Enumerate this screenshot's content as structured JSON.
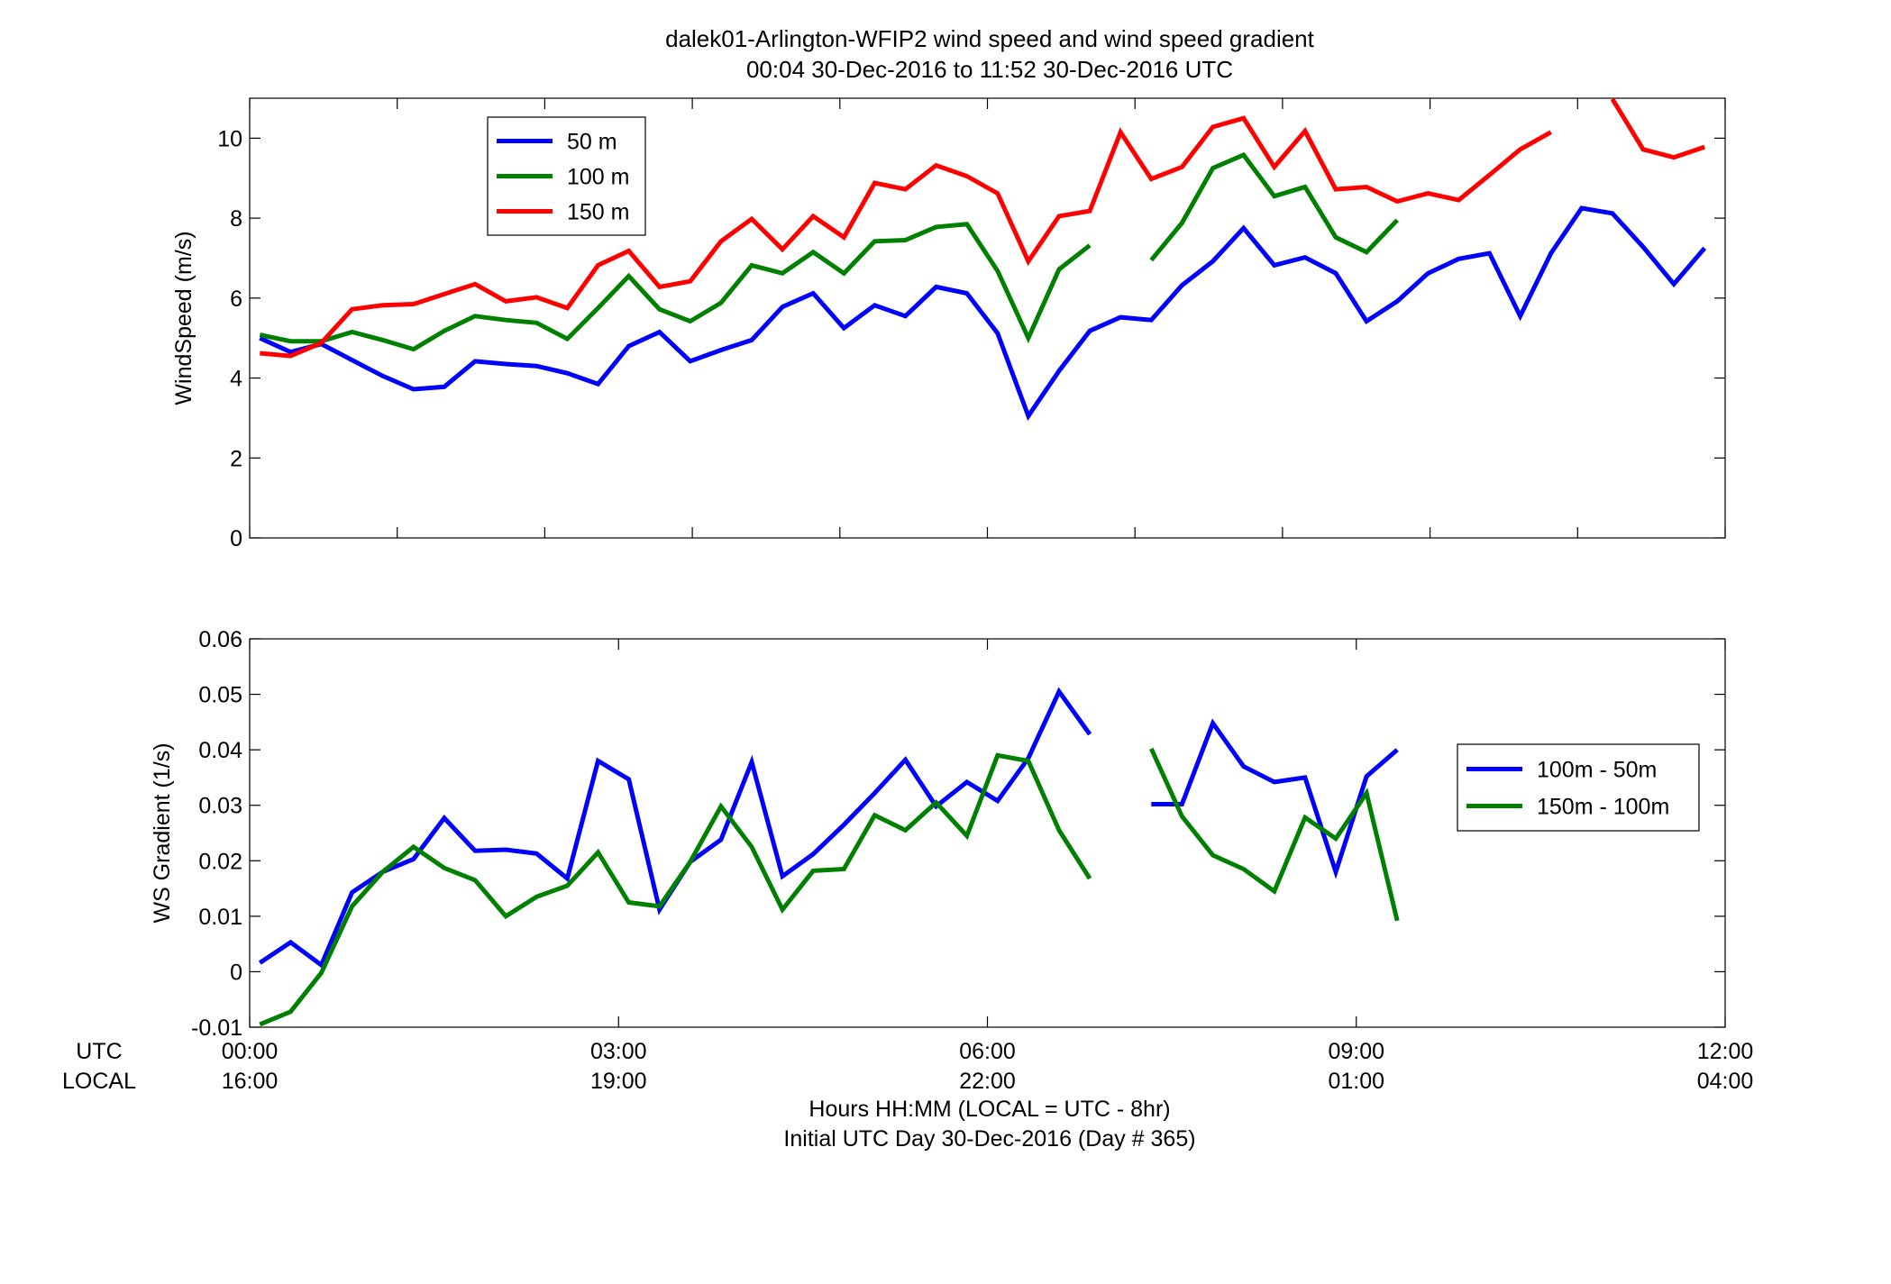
{
  "figure": {
    "title_line1": "dalek01-Arlington-WFIP2  wind speed and wind speed gradient",
    "title_line2": "00:04 30-Dec-2016 to 11:52 30-Dec-2016  UTC",
    "row_label_utc": "UTC",
    "row_label_local": "LOCAL",
    "xlabel_line1": "Hours HH:MM  (LOCAL = UTC - 8hr)",
    "xlabel_line2": "Initial UTC Day 30-Dec-2016 (Day # 365)"
  },
  "chart_data": [
    {
      "type": "line",
      "ylabel": "WindSpeed (m/s)",
      "xlim": [
        0,
        12
      ],
      "ylim": [
        0,
        11
      ],
      "yticks": [
        0,
        2,
        4,
        6,
        8,
        10
      ],
      "xticks": [
        0,
        1.2,
        2.4,
        3.6,
        4.8,
        6,
        7.2,
        8.4,
        9.6,
        10.8,
        12
      ],
      "legend_position": "top-left",
      "series": [
        {
          "name": "50 m",
          "color": "#0000ff",
          "x": [
            0.083,
            0.333,
            0.583,
            0.833,
            1.083,
            1.333,
            1.583,
            1.833,
            2.083,
            2.333,
            2.583,
            2.833,
            3.083,
            3.333,
            3.583,
            3.833,
            4.083,
            4.333,
            4.583,
            4.833,
            5.083,
            5.333,
            5.583,
            5.833,
            6.083,
            6.333,
            6.583,
            6.833,
            7.083,
            7.333,
            7.583,
            7.833,
            8.083,
            8.333,
            8.583,
            8.833,
            9.083,
            9.333,
            9.583,
            9.833,
            10.083,
            10.333,
            10.583,
            10.833,
            11.083,
            11.333,
            11.583,
            11.833
          ],
          "y": [
            5.0,
            4.65,
            4.85,
            4.45,
            4.05,
            3.72,
            3.78,
            4.42,
            4.35,
            4.3,
            4.12,
            3.85,
            4.8,
            5.15,
            4.42,
            4.7,
            4.95,
            5.78,
            6.12,
            5.25,
            5.82,
            5.55,
            6.28,
            6.12,
            5.12,
            3.05,
            4.18,
            5.18,
            5.52,
            5.45,
            6.32,
            6.92,
            7.75,
            6.82,
            7.02,
            6.62,
            5.42,
            5.92,
            6.62,
            6.98,
            7.12,
            5.55,
            7.12,
            8.25,
            8.12,
            7.28,
            6.35,
            7.25
          ]
        },
        {
          "name": "100 m",
          "color": "#008000",
          "x": [
            0.083,
            0.333,
            0.583,
            0.833,
            1.083,
            1.333,
            1.583,
            1.833,
            2.083,
            2.333,
            2.583,
            2.833,
            3.083,
            3.333,
            3.583,
            3.833,
            4.083,
            4.333,
            4.583,
            4.833,
            5.083,
            5.333,
            5.583,
            5.833,
            6.083,
            6.333,
            6.583,
            6.833,
            7.083,
            7.333,
            7.583,
            7.833,
            8.083,
            8.333,
            8.583,
            8.833,
            9.083,
            9.333
          ],
          "y": [
            5.08,
            4.92,
            4.92,
            5.15,
            4.95,
            4.72,
            5.18,
            5.55,
            5.45,
            5.38,
            4.98,
            5.75,
            6.55,
            5.72,
            5.42,
            5.88,
            6.82,
            6.62,
            7.15,
            6.62,
            7.42,
            7.45,
            7.78,
            7.85,
            6.68,
            5.0,
            6.72,
            7.32,
            null,
            6.95,
            7.88,
            9.25,
            9.58,
            8.55,
            8.78,
            7.52,
            7.15,
            7.95
          ]
        },
        {
          "name": "150 m",
          "color": "#ff0000",
          "x": [
            0.083,
            0.333,
            0.583,
            0.833,
            1.083,
            1.333,
            1.583,
            1.833,
            2.083,
            2.333,
            2.583,
            2.833,
            3.083,
            3.333,
            3.583,
            3.833,
            4.083,
            4.333,
            4.583,
            4.833,
            5.083,
            5.333,
            5.583,
            5.833,
            6.083,
            6.333,
            6.583,
            6.833,
            7.083,
            7.333,
            7.583,
            7.833,
            8.083,
            8.333,
            8.583,
            8.833,
            9.083,
            9.333,
            9.583,
            9.833,
            10.083,
            10.333,
            10.583,
            10.833,
            11.083,
            11.333,
            11.583,
            11.833
          ],
          "y": [
            4.62,
            4.55,
            4.88,
            5.72,
            5.82,
            5.85,
            6.1,
            6.35,
            5.92,
            6.02,
            5.75,
            6.82,
            7.18,
            6.28,
            6.42,
            7.42,
            7.98,
            7.22,
            8.05,
            7.52,
            8.88,
            8.72,
            9.32,
            9.05,
            8.62,
            6.92,
            8.05,
            8.18,
            10.15,
            8.98,
            9.28,
            10.28,
            10.5,
            9.28,
            10.18,
            8.72,
            8.78,
            8.42,
            8.62,
            8.45,
            9.08,
            9.72,
            10.15,
            null,
            10.98,
            9.72,
            9.52,
            9.78
          ]
        }
      ]
    },
    {
      "type": "line",
      "ylabel": "WS Gradient (1/s)",
      "xlim": [
        0,
        12
      ],
      "ylim": [
        -0.01,
        0.06
      ],
      "yticks": [
        -0.01,
        0,
        0.01,
        0.02,
        0.03,
        0.04,
        0.05,
        0.06
      ],
      "ytick_labels": [
        "-0.01",
        "0",
        "0.01",
        "0.02",
        "0.03",
        "0.04",
        "0.05",
        "0.06"
      ],
      "xticks": [
        0,
        3,
        6,
        9,
        12
      ],
      "xtick_labels_utc": [
        "00:00",
        "03:00",
        "06:00",
        "09:00",
        "12:00"
      ],
      "xtick_labels_local": [
        "16:00",
        "19:00",
        "22:00",
        "01:00",
        "04:00"
      ],
      "legend_position": "right",
      "series": [
        {
          "name": "100m - 50m",
          "color": "#0000ff",
          "x": [
            0.083,
            0.333,
            0.583,
            0.833,
            1.083,
            1.333,
            1.583,
            1.833,
            2.083,
            2.333,
            2.583,
            2.833,
            3.083,
            3.333,
            3.583,
            3.833,
            4.083,
            4.333,
            4.583,
            4.833,
            5.083,
            5.333,
            5.583,
            5.833,
            6.083,
            6.333,
            6.583,
            6.833,
            7.083,
            7.333,
            7.583,
            7.833,
            8.083,
            8.333,
            8.583,
            8.833,
            9.083,
            9.333
          ],
          "y": [
            0.0016,
            0.0053,
            0.0012,
            0.0143,
            0.018,
            0.0203,
            0.0277,
            0.0218,
            0.022,
            0.0213,
            0.0168,
            0.038,
            0.0347,
            0.0112,
            0.0198,
            0.0238,
            0.0378,
            0.0172,
            0.0212,
            0.0265,
            0.0322,
            0.0382,
            0.0298,
            0.0342,
            0.0308,
            0.0385,
            0.0505,
            0.0428,
            null,
            0.0302,
            0.0302,
            0.0448,
            0.037,
            0.0342,
            0.035,
            0.018,
            0.0352,
            0.04
          ]
        },
        {
          "name": "150m - 100m",
          "color": "#008000",
          "x": [
            0.083,
            0.333,
            0.583,
            0.833,
            1.083,
            1.333,
            1.583,
            1.833,
            2.083,
            2.333,
            2.583,
            2.833,
            3.083,
            3.333,
            3.583,
            3.833,
            4.083,
            4.333,
            4.583,
            4.833,
            5.083,
            5.333,
            5.583,
            5.833,
            6.083,
            6.333,
            6.583,
            6.833,
            7.083,
            7.333,
            7.583,
            7.833,
            8.083,
            8.333,
            8.583,
            8.833,
            9.083,
            9.333
          ],
          "y": [
            -0.0095,
            -0.0072,
            -0.0002,
            0.0118,
            0.018,
            0.0225,
            0.0187,
            0.0165,
            0.01,
            0.0135,
            0.0155,
            0.0215,
            0.0125,
            0.0118,
            0.0198,
            0.0298,
            0.0225,
            0.0112,
            0.0182,
            0.0185,
            0.0282,
            0.0255,
            0.0305,
            0.0245,
            0.039,
            0.038,
            0.0255,
            0.0168,
            null,
            0.0402,
            0.028,
            0.021,
            0.0185,
            0.0145,
            0.0278,
            0.024,
            0.0322,
            0.0092
          ]
        }
      ]
    }
  ]
}
